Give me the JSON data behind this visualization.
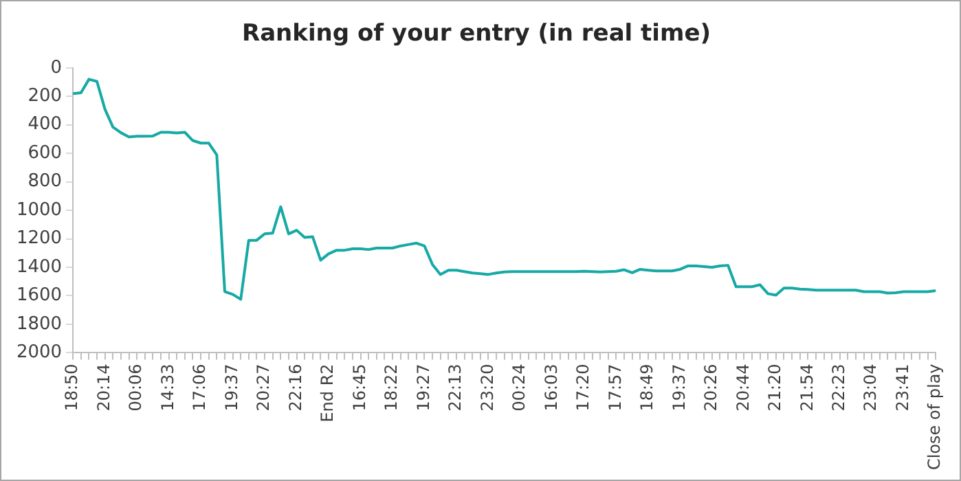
{
  "chart_data": {
    "type": "line",
    "title": "Ranking of your entry (in real time)",
    "categories": [
      "18:50",
      null,
      null,
      null,
      "20:14",
      null,
      null,
      null,
      "00:06",
      null,
      null,
      null,
      "14:33",
      null,
      null,
      null,
      "17:06",
      null,
      null,
      null,
      "19:37",
      null,
      null,
      null,
      "20:27",
      null,
      null,
      null,
      "22:16",
      null,
      null,
      null,
      "End R2",
      null,
      null,
      null,
      "16:45",
      null,
      null,
      null,
      "18:22",
      null,
      null,
      null,
      "19:27",
      null,
      null,
      null,
      "22:13",
      null,
      null,
      null,
      "23:20",
      null,
      null,
      null,
      "00:24",
      null,
      null,
      null,
      "16:03",
      null,
      null,
      null,
      "17:20",
      null,
      null,
      null,
      "17:57",
      null,
      null,
      null,
      "18:49",
      null,
      null,
      null,
      "19:37",
      null,
      null,
      null,
      "20:26",
      null,
      null,
      null,
      "20:44",
      null,
      null,
      null,
      "21:20",
      null,
      null,
      null,
      "21:54",
      null,
      null,
      null,
      "22:23",
      null,
      null,
      null,
      "23:04",
      null,
      null,
      null,
      "23:41",
      null,
      null,
      null,
      "Close of play"
    ],
    "series": [
      {
        "color": "#17a9a5",
        "values": [
          181,
          175,
          80,
          95,
          290,
          415,
          455,
          485,
          480,
          480,
          478,
          452,
          452,
          457,
          452,
          510,
          528,
          528,
          610,
          1570,
          1590,
          1625,
          1210,
          1210,
          1165,
          1160,
          975,
          1165,
          1140,
          1190,
          1185,
          1350,
          1305,
          1280,
          1280,
          1270,
          1270,
          1275,
          1265,
          1265,
          1265,
          1250,
          1240,
          1230,
          1250,
          1380,
          1450,
          1420,
          1420,
          1430,
          1440,
          1445,
          1450,
          1440,
          1432,
          1430,
          1430,
          1430,
          1430,
          1430,
          1430,
          1430,
          1430,
          1430,
          1428,
          1430,
          1432,
          1430,
          1428,
          1417,
          1438,
          1414,
          1420,
          1425,
          1425,
          1425,
          1414,
          1390,
          1390,
          1395,
          1400,
          1390,
          1386,
          1536,
          1536,
          1536,
          1522,
          1585,
          1595,
          1546,
          1546,
          1553,
          1555,
          1560,
          1560,
          1560,
          1560,
          1560,
          1560,
          1571,
          1571,
          1571,
          1581,
          1578,
          1571,
          1571,
          1571,
          1571,
          1564
        ]
      }
    ],
    "ylim": [
      2000,
      0
    ],
    "yticks": [
      0,
      200,
      400,
      600,
      800,
      1000,
      1200,
      1400,
      1600,
      1800,
      2000
    ],
    "grid": false,
    "legend": false,
    "marker": "none",
    "line_style": "solid"
  }
}
